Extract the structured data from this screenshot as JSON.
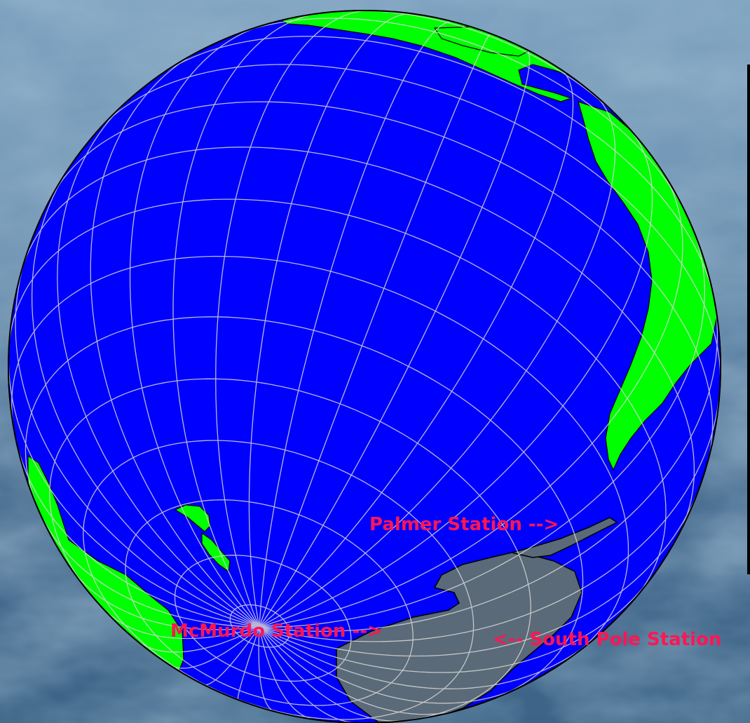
{
  "map": {
    "colors": {
      "ocean": "#0000ff",
      "land": "#00ff00",
      "antarctica": "#5a6a78",
      "graticule": "#d8d8d8",
      "coastline": "#000000",
      "label": "#ff1654",
      "background": "#5f86a6"
    },
    "projection": "orthographic",
    "graticule": true,
    "labels": {
      "palmer": "Palmer Station -->",
      "mcmurdo": "McMurdo Station -->",
      "south_pole": "<-- South Pole Station"
    }
  }
}
